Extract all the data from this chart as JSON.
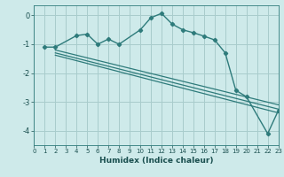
{
  "xlabel": "Humidex (Indice chaleur)",
  "background_color": "#ceeaea",
  "grid_color": "#a8cccc",
  "line_color": "#2e7b7b",
  "xlim": [
    0,
    23
  ],
  "ylim": [
    -4.5,
    0.35
  ],
  "xticks": [
    0,
    1,
    2,
    3,
    4,
    5,
    6,
    7,
    8,
    9,
    10,
    11,
    12,
    13,
    14,
    15,
    16,
    17,
    18,
    19,
    20,
    21,
    22,
    23
  ],
  "yticks": [
    0,
    -1,
    -2,
    -3,
    -4
  ],
  "main_x": [
    1,
    2,
    4,
    5,
    6,
    7,
    8,
    10,
    11,
    12,
    13,
    14,
    15,
    16,
    17,
    18,
    19,
    20,
    22,
    23
  ],
  "main_y": [
    -1.1,
    -1.1,
    -0.7,
    -0.65,
    -1.0,
    -0.82,
    -1.0,
    -0.5,
    -0.08,
    0.07,
    -0.3,
    -0.5,
    -0.6,
    -0.72,
    -0.85,
    -1.3,
    -2.6,
    -2.82,
    -4.1,
    -3.3
  ],
  "line2_x": [
    2,
    23
  ],
  "line2_y": [
    -1.2,
    -3.1
  ],
  "line3_x": [
    2,
    23
  ],
  "line3_y": [
    -1.3,
    -3.25
  ],
  "line4_x": [
    2,
    23
  ],
  "line4_y": [
    -1.38,
    -3.38
  ]
}
